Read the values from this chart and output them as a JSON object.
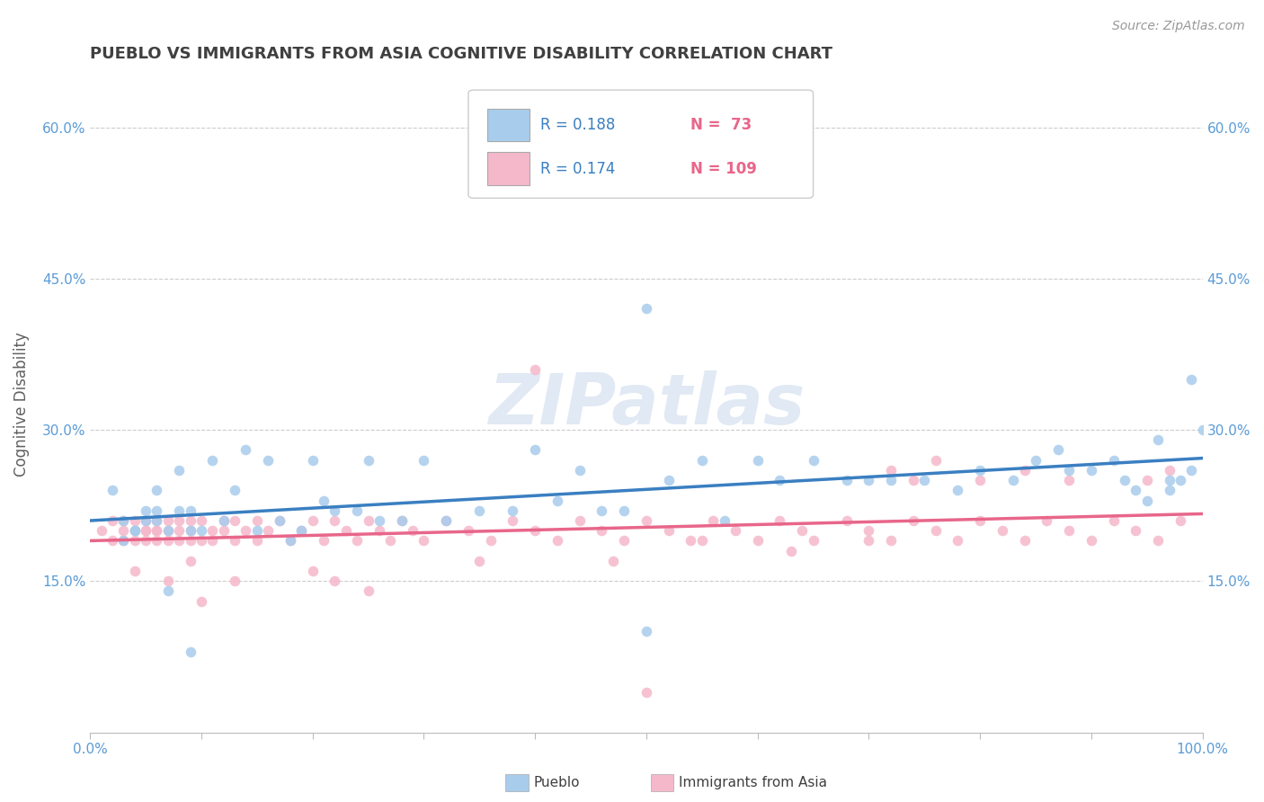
{
  "title": "PUEBLO VS IMMIGRANTS FROM ASIA COGNITIVE DISABILITY CORRELATION CHART",
  "source": "Source: ZipAtlas.com",
  "ylabel": "Cognitive Disability",
  "xlim": [
    0.0,
    1.0
  ],
  "ylim": [
    0.0,
    0.65
  ],
  "yticks": [
    0.15,
    0.3,
    0.45,
    0.6
  ],
  "ytick_labels": [
    "15.0%",
    "30.0%",
    "45.0%",
    "60.0%"
  ],
  "xticks": [
    0.0,
    0.1,
    0.2,
    0.3,
    0.4,
    0.5,
    0.6,
    0.7,
    0.8,
    0.9,
    1.0
  ],
  "xtick_labels": [
    "0.0%",
    "",
    "",
    "",
    "",
    "",
    "",
    "",
    "",
    "",
    "100.0%"
  ],
  "blue_R": 0.188,
  "blue_N": 73,
  "pink_R": 0.174,
  "pink_N": 109,
  "blue_color": "#a8ccec",
  "pink_color": "#f5b8cb",
  "blue_line_color": "#3a7fc1",
  "pink_line_color": "#e8668a",
  "watermark": "ZIPatlas",
  "background_color": "#ffffff",
  "grid_color": "#cccccc",
  "title_color": "#404040",
  "axis_label_color": "#5b9bd5",
  "legend_R_color": "#3a7fc1",
  "legend_N_color": "#e8668a",
  "blue_scatter_x": [
    0.02,
    0.03,
    0.04,
    0.05,
    0.05,
    0.06,
    0.06,
    0.07,
    0.08,
    0.09,
    0.09,
    0.1,
    0.11,
    0.12,
    0.13,
    0.14,
    0.15,
    0.16,
    0.17,
    0.18,
    0.19,
    0.2,
    0.21,
    0.22,
    0.24,
    0.25,
    0.26,
    0.28,
    0.3,
    0.32,
    0.35,
    0.38,
    0.4,
    0.42,
    0.44,
    0.46,
    0.48,
    0.5,
    0.52,
    0.55,
    0.57,
    0.6,
    0.62,
    0.65,
    0.68,
    0.7,
    0.72,
    0.75,
    0.78,
    0.8,
    0.83,
    0.85,
    0.87,
    0.88,
    0.9,
    0.92,
    0.93,
    0.94,
    0.95,
    0.96,
    0.97,
    0.98,
    0.99,
    1.0,
    0.99,
    0.97,
    0.5,
    0.07,
    0.09,
    0.04,
    0.03,
    0.06,
    0.08
  ],
  "blue_scatter_y": [
    0.24,
    0.21,
    0.2,
    0.22,
    0.21,
    0.22,
    0.24,
    0.2,
    0.26,
    0.2,
    0.22,
    0.2,
    0.27,
    0.21,
    0.24,
    0.28,
    0.2,
    0.27,
    0.21,
    0.19,
    0.2,
    0.27,
    0.23,
    0.22,
    0.22,
    0.27,
    0.21,
    0.21,
    0.27,
    0.21,
    0.22,
    0.22,
    0.28,
    0.23,
    0.26,
    0.22,
    0.22,
    0.42,
    0.25,
    0.27,
    0.21,
    0.27,
    0.25,
    0.27,
    0.25,
    0.25,
    0.25,
    0.25,
    0.24,
    0.26,
    0.25,
    0.27,
    0.28,
    0.26,
    0.26,
    0.27,
    0.25,
    0.24,
    0.23,
    0.29,
    0.25,
    0.25,
    0.35,
    0.3,
    0.26,
    0.24,
    0.1,
    0.14,
    0.08,
    0.2,
    0.19,
    0.21,
    0.22
  ],
  "pink_scatter_x": [
    0.01,
    0.02,
    0.02,
    0.03,
    0.03,
    0.03,
    0.04,
    0.04,
    0.04,
    0.05,
    0.05,
    0.05,
    0.05,
    0.06,
    0.06,
    0.06,
    0.06,
    0.07,
    0.07,
    0.07,
    0.08,
    0.08,
    0.08,
    0.09,
    0.09,
    0.09,
    0.1,
    0.1,
    0.11,
    0.11,
    0.12,
    0.12,
    0.13,
    0.13,
    0.14,
    0.15,
    0.15,
    0.16,
    0.17,
    0.18,
    0.19,
    0.2,
    0.21,
    0.22,
    0.23,
    0.24,
    0.25,
    0.26,
    0.27,
    0.28,
    0.29,
    0.3,
    0.32,
    0.34,
    0.36,
    0.38,
    0.4,
    0.42,
    0.44,
    0.46,
    0.48,
    0.5,
    0.52,
    0.54,
    0.56,
    0.58,
    0.6,
    0.62,
    0.64,
    0.65,
    0.68,
    0.7,
    0.72,
    0.74,
    0.76,
    0.78,
    0.8,
    0.82,
    0.84,
    0.86,
    0.88,
    0.9,
    0.92,
    0.94,
    0.96,
    0.98,
    0.47,
    0.55,
    0.63,
    0.7,
    0.72,
    0.74,
    0.76,
    0.8,
    0.84,
    0.88,
    0.5,
    0.1,
    0.07,
    0.04,
    0.09,
    0.13,
    0.2,
    0.22,
    0.25,
    0.35,
    0.4,
    0.95,
    0.97
  ],
  "pink_scatter_y": [
    0.2,
    0.19,
    0.21,
    0.2,
    0.21,
    0.19,
    0.2,
    0.19,
    0.21,
    0.2,
    0.21,
    0.19,
    0.2,
    0.2,
    0.19,
    0.21,
    0.2,
    0.2,
    0.19,
    0.21,
    0.21,
    0.2,
    0.19,
    0.19,
    0.21,
    0.2,
    0.19,
    0.21,
    0.2,
    0.19,
    0.21,
    0.2,
    0.21,
    0.19,
    0.2,
    0.21,
    0.19,
    0.2,
    0.21,
    0.19,
    0.2,
    0.21,
    0.19,
    0.21,
    0.2,
    0.19,
    0.21,
    0.2,
    0.19,
    0.21,
    0.2,
    0.19,
    0.21,
    0.2,
    0.19,
    0.21,
    0.2,
    0.19,
    0.21,
    0.2,
    0.19,
    0.21,
    0.2,
    0.19,
    0.21,
    0.2,
    0.19,
    0.21,
    0.2,
    0.19,
    0.21,
    0.2,
    0.19,
    0.21,
    0.2,
    0.19,
    0.21,
    0.2,
    0.19,
    0.21,
    0.2,
    0.19,
    0.21,
    0.2,
    0.19,
    0.21,
    0.17,
    0.19,
    0.18,
    0.19,
    0.26,
    0.25,
    0.27,
    0.25,
    0.26,
    0.25,
    0.04,
    0.13,
    0.15,
    0.16,
    0.17,
    0.15,
    0.16,
    0.15,
    0.14,
    0.17,
    0.36,
    0.25,
    0.26
  ]
}
